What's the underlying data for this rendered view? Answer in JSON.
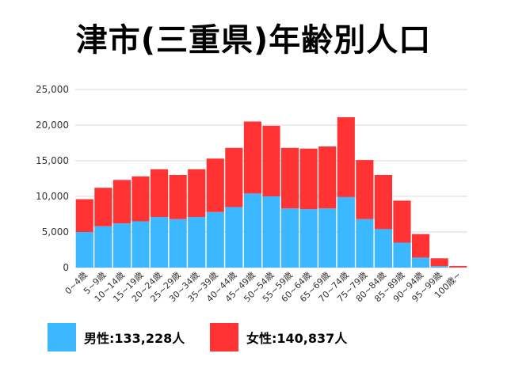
{
  "title": "津市(三重県)年齢別人口",
  "colors": {
    "male": "#3bb8ff",
    "female": "#ff3333",
    "grid": "#d9d9d9"
  },
  "legend": {
    "male": "男性:133,228人",
    "female": "女性:140,837人"
  },
  "chart_data": {
    "type": "bar",
    "stacked": true,
    "title": "津市(三重県)年齢別人口",
    "xlabel": "",
    "ylabel": "",
    "ylim": [
      0,
      25000
    ],
    "yticks": [
      0,
      5000,
      10000,
      15000,
      20000,
      25000
    ],
    "ytick_labels": [
      "0",
      "5,000",
      "10,000",
      "15,000",
      "20,000",
      "25,000"
    ],
    "grid": true,
    "legend_position": "bottom",
    "categories": [
      "0~4歳",
      "5~9歳",
      "10~14歳",
      "15~19歳",
      "20~24歳",
      "25~29歳",
      "30~34歳",
      "35~39歳",
      "40~44歳",
      "45~49歳",
      "50~54歳",
      "55~59歳",
      "60~64歳",
      "65~69歳",
      "70~74歳",
      "75~79歳",
      "80~84歳",
      "85~89歳",
      "90~94歳",
      "95~99歳",
      "100歳~"
    ],
    "series": [
      {
        "name": "男性:133,228人",
        "values": [
          5000,
          5800,
          6200,
          6500,
          7100,
          6800,
          7100,
          7800,
          8500,
          10400,
          10000,
          8300,
          8200,
          8300,
          9900,
          6800,
          5400,
          3500,
          1400,
          200,
          30
        ]
      },
      {
        "name": "女性:140,837人",
        "values": [
          4600,
          5400,
          6100,
          6300,
          6700,
          6200,
          6700,
          7500,
          8300,
          10100,
          9900,
          8500,
          8500,
          8700,
          11200,
          8300,
          7600,
          5900,
          3300,
          1100,
          200
        ]
      }
    ]
  }
}
